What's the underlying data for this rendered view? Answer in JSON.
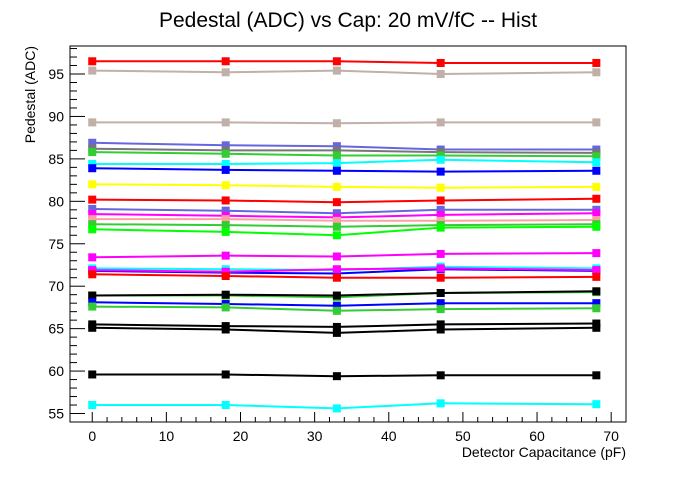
{
  "chart_data": {
    "type": "line",
    "title": "Pedestal (ADC) vs Cap: 20 mV/fC -- Hist",
    "xlabel": "Detector Capacitance (pF)",
    "ylabel": "Pedestal (ADC)",
    "xlim": [
      -3,
      72
    ],
    "ylim": [
      54,
      98.3
    ],
    "x_ticks": [
      "0",
      "10",
      "20",
      "30",
      "40",
      "50",
      "60",
      "70"
    ],
    "y_ticks": [
      "55",
      "60",
      "65",
      "70",
      "75",
      "80",
      "85",
      "90",
      "95"
    ],
    "x": [
      0,
      18,
      33,
      47,
      68
    ],
    "grid": false,
    "legend": "none",
    "series": [
      {
        "color": "#ff0000",
        "values": [
          96.5,
          96.5,
          96.5,
          96.3,
          96.3
        ]
      },
      {
        "color": "#c0b0a8",
        "values": [
          95.4,
          95.2,
          95.4,
          95.0,
          95.2
        ]
      },
      {
        "color": "#c0b0a8",
        "values": [
          89.3,
          89.3,
          89.2,
          89.3,
          89.3
        ]
      },
      {
        "color": "#6666dd",
        "values": [
          86.9,
          86.6,
          86.5,
          86.1,
          86.1
        ]
      },
      {
        "color": "#777777",
        "values": [
          86.2,
          86.0,
          86.0,
          85.8,
          85.7
        ]
      },
      {
        "color": "#33cc33",
        "values": [
          85.8,
          85.6,
          85.4,
          85.4,
          85.3
        ]
      },
      {
        "color": "#00ffff",
        "values": [
          84.4,
          84.4,
          84.5,
          84.9,
          84.6
        ]
      },
      {
        "color": "#0000ff",
        "values": [
          83.9,
          83.7,
          83.6,
          83.5,
          83.6
        ]
      },
      {
        "color": "#ffff00",
        "values": [
          82.0,
          81.9,
          81.7,
          81.6,
          81.7
        ]
      },
      {
        "color": "#ff0000",
        "values": [
          80.2,
          80.1,
          79.9,
          80.1,
          80.3
        ]
      },
      {
        "color": "#6666dd",
        "values": [
          79.1,
          78.9,
          78.6,
          79.0,
          79.0
        ]
      },
      {
        "color": "#ff00ff",
        "values": [
          78.5,
          78.3,
          78.1,
          78.4,
          78.6
        ]
      },
      {
        "color": "#ffa0a0",
        "values": [
          77.9,
          77.9,
          77.7,
          77.7,
          77.8
        ]
      },
      {
        "color": "#33cc33",
        "values": [
          77.3,
          77.2,
          77.0,
          77.2,
          77.3
        ]
      },
      {
        "color": "#00ff00",
        "values": [
          76.7,
          76.4,
          76.0,
          76.9,
          77.0
        ]
      },
      {
        "color": "#ff00ff",
        "values": [
          73.4,
          73.6,
          73.5,
          73.8,
          73.9
        ]
      },
      {
        "color": "#00ffff",
        "values": [
          72.1,
          72.0,
          71.9,
          72.3,
          72.1
        ]
      },
      {
        "color": "#0000ff",
        "values": [
          71.8,
          71.6,
          71.5,
          72.0,
          71.8
        ]
      },
      {
        "color": "#ff00ff",
        "values": [
          71.9,
          71.7,
          72.0,
          72.1,
          71.9
        ]
      },
      {
        "color": "#ff0000",
        "values": [
          71.4,
          71.2,
          71.0,
          71.0,
          71.1
        ]
      },
      {
        "color": "#33cc33",
        "values": [
          68.9,
          68.9,
          68.7,
          69.2,
          69.3
        ]
      },
      {
        "color": "#000000",
        "values": [
          68.9,
          69.0,
          68.9,
          69.2,
          69.4
        ]
      },
      {
        "color": "#0000ff",
        "values": [
          68.1,
          67.9,
          67.7,
          68.0,
          68.0
        ]
      },
      {
        "color": "#33cc33",
        "values": [
          67.6,
          67.5,
          67.1,
          67.3,
          67.4
        ]
      },
      {
        "color": "#000000",
        "values": [
          65.5,
          65.3,
          65.2,
          65.5,
          65.6
        ]
      },
      {
        "color": "#000000",
        "values": [
          65.1,
          64.9,
          64.5,
          64.9,
          65.1
        ]
      },
      {
        "color": "#000000",
        "values": [
          59.6,
          59.6,
          59.4,
          59.5,
          59.5
        ]
      },
      {
        "color": "#00ffff",
        "values": [
          56.0,
          56.0,
          55.6,
          56.2,
          56.1
        ]
      }
    ]
  }
}
